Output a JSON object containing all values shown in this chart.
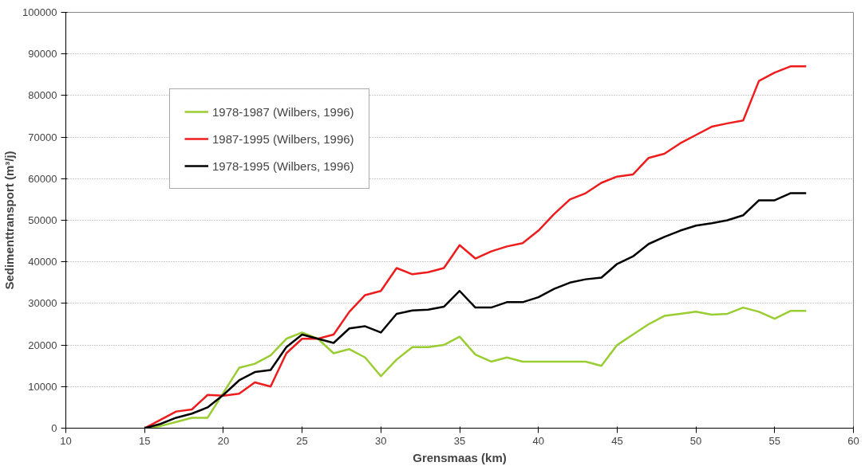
{
  "chart_data": {
    "type": "line",
    "xlabel": "Grensmaas (km)",
    "ylabel": "Sedimenttransport (m³/j)",
    "x": [
      15,
      16,
      17,
      18,
      19,
      20,
      21,
      22,
      23,
      24,
      25,
      26,
      27,
      28,
      29,
      30,
      31,
      32,
      33,
      34,
      35,
      36,
      37,
      38,
      39,
      40,
      41,
      42,
      43,
      44,
      45,
      46,
      47,
      48,
      49,
      50,
      51,
      52,
      53,
      54,
      55,
      56,
      57
    ],
    "series": [
      {
        "name": "1978-1987 (Wilbers, 1996)",
        "color": "#9acd32",
        "values": [
          0,
          500,
          1500,
          2500,
          2500,
          8500,
          14500,
          15500,
          17500,
          21500,
          23000,
          21500,
          18000,
          19000,
          17000,
          12500,
          16500,
          19500,
          19500,
          20000,
          22000,
          17700,
          16000,
          17000,
          16000,
          16000,
          16000,
          16000,
          16000,
          15000,
          20000,
          22500,
          25000,
          27000,
          27500,
          28000,
          27300,
          27500,
          29000,
          28000,
          26300,
          28200,
          28200
        ]
      },
      {
        "name": "1987-1995 (Wilbers, 1996)",
        "color": "#ee1c1c",
        "values": [
          0,
          2000,
          4000,
          4500,
          8000,
          7800,
          8300,
          11000,
          10000,
          18000,
          21500,
          21500,
          22500,
          28000,
          32000,
          33000,
          38500,
          37000,
          37500,
          38500,
          44000,
          40800,
          42500,
          43700,
          44500,
          47500,
          51500,
          55000,
          56500,
          59000,
          60500,
          61000,
          65000,
          66000,
          68500,
          70500,
          72500,
          73300,
          74000,
          83500,
          85500,
          87000,
          87000
        ]
      },
      {
        "name": "1978-1995 (Wilbers, 1996)",
        "color": "#000000",
        "values": [
          0,
          1000,
          2500,
          3500,
          5000,
          8000,
          11500,
          13500,
          14000,
          19500,
          22500,
          21500,
          20500,
          24000,
          24500,
          23000,
          27500,
          28300,
          28500,
          29200,
          33000,
          29000,
          29000,
          30300,
          30300,
          31500,
          33500,
          35000,
          35800,
          36200,
          39500,
          41300,
          44300,
          46000,
          47500,
          48700,
          49300,
          50000,
          51200,
          54800,
          54800,
          56500,
          56500
        ]
      }
    ],
    "xlim": [
      10,
      60
    ],
    "xticks": [
      10,
      15,
      20,
      25,
      30,
      35,
      40,
      45,
      50,
      55,
      60
    ],
    "ylim": [
      0,
      100000
    ],
    "yticks": [
      0,
      10000,
      20000,
      30000,
      40000,
      50000,
      60000,
      70000,
      80000,
      90000,
      100000
    ],
    "grid": "y",
    "legend": "top left",
    "marker": "none",
    "line_style": "solid"
  }
}
